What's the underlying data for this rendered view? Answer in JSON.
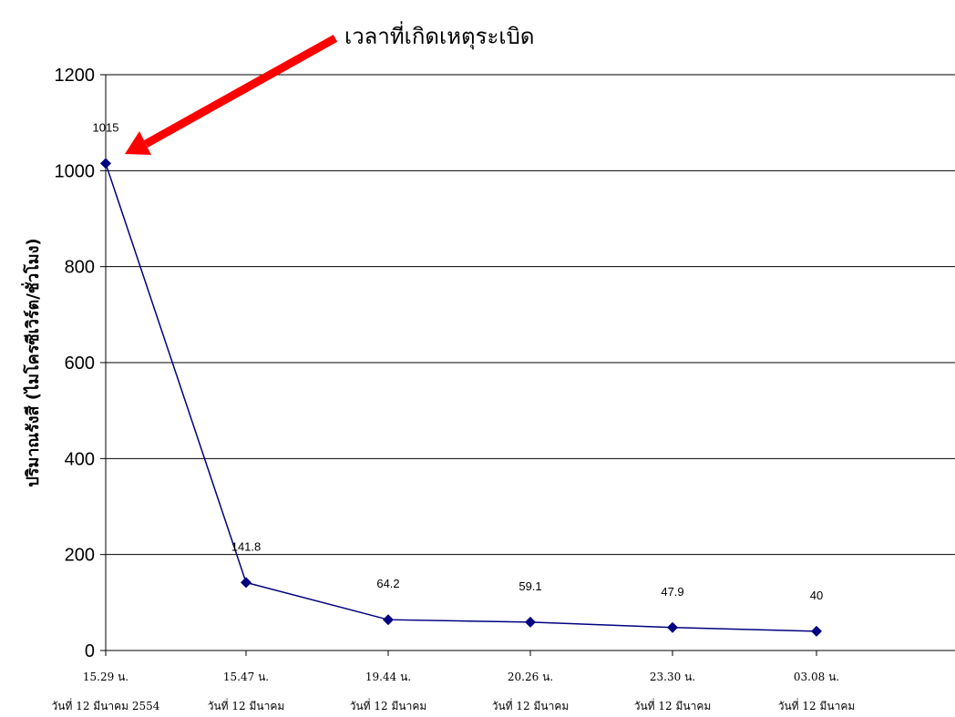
{
  "chart_data": {
    "type": "line",
    "title": "",
    "ylabel": "ปริมาณรังสี (ไมโครซีเวิร์ต/ชั่วโมง)",
    "ylim": [
      0,
      1200
    ],
    "yticks": [
      "0",
      "200",
      "400",
      "600",
      "800",
      "1000",
      "1200"
    ],
    "grid": true,
    "categories": [
      {
        "time": "15.29 น.",
        "date": "วันที่ 12 มีนาคม 2554"
      },
      {
        "time": "15.47 น.",
        "date": "วันที่ 12 มีนาคม"
      },
      {
        "time": "19.44 น.",
        "date": "วันที่ 12 มีนาคม"
      },
      {
        "time": "20.26 น.",
        "date": "วันที่ 12 มีนาคม"
      },
      {
        "time": "23.30 น.",
        "date": "วันที่ 12 มีนาคม"
      },
      {
        "time": "03.08 น.",
        "date": "วันที่ 12 มีนาคม"
      }
    ],
    "series": [
      {
        "values": [
          1015,
          141.8,
          64.2,
          59.1,
          47.9,
          40
        ],
        "color": "#000080"
      }
    ],
    "data_labels": [
      "1015",
      "141.8",
      "64.2",
      "59.1",
      "47.9",
      "40"
    ],
    "annotation": {
      "text": "เวลาที่เกิดเหตุระเบิด",
      "target_index": 0,
      "arrow_color": "#ff0000"
    }
  }
}
